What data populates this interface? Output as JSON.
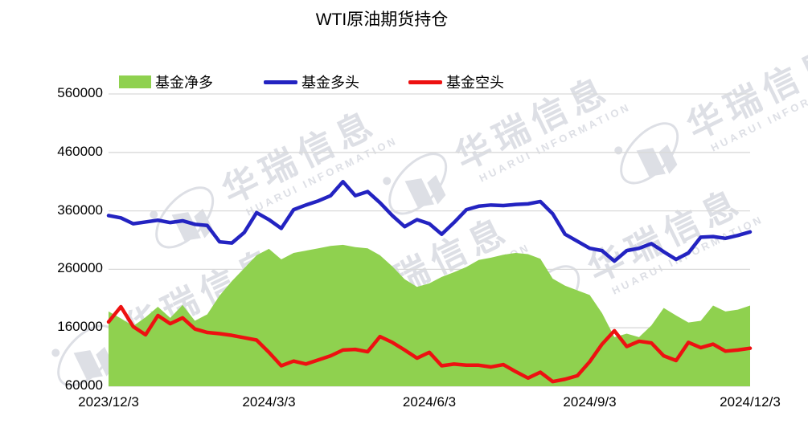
{
  "title": "WTI原油期货持仓",
  "watermark": {
    "cn": "华瑞信息",
    "en": "HUARUI INFORMATION"
  },
  "legend": [
    {
      "label": "基金净多",
      "type": "area",
      "color": "#8FD14F"
    },
    {
      "label": "基金多头",
      "type": "line",
      "color": "#2323C1"
    },
    {
      "label": "基金空头",
      "type": "line",
      "color": "#ED1111"
    }
  ],
  "colors": {
    "grid": "#D9D9D9",
    "background": "#FFFFFF",
    "watermark": "#C9CCD6"
  },
  "chart_data": {
    "type": "area",
    "title": "WTI原油期货持仓",
    "x_ticks": [
      "2023/12/3",
      "2024/3/3",
      "2024/6/3",
      "2024/9/3",
      "2024/12/3"
    ],
    "x_tick_indices": [
      0,
      13,
      26,
      39,
      52
    ],
    "x_unit": "weekly",
    "y_ticks": [
      560000,
      460000,
      360000,
      260000,
      160000,
      60000
    ],
    "ylim": [
      60000,
      560000
    ],
    "grid": "horizontal",
    "legend_position": "top-left",
    "series": [
      {
        "name": "基金净多",
        "type": "area",
        "color": "#8FD14F",
        "values": [
          188000,
          176000,
          163000,
          178000,
          196000,
          177000,
          199000,
          172000,
          183000,
          215000,
          240000,
          262000,
          284000,
          295000,
          277000,
          288000,
          292000,
          296000,
          300000,
          302000,
          298000,
          296000,
          284000,
          265000,
          243000,
          230000,
          236000,
          247000,
          255000,
          264000,
          276000,
          280000,
          285000,
          288000,
          286000,
          278000,
          244000,
          232000,
          224000,
          216000,
          185000,
          144000,
          150000,
          144000,
          164000,
          194000,
          181000,
          169000,
          172000,
          198000,
          188000,
          191000,
          198000
        ]
      },
      {
        "name": "基金多头",
        "type": "line",
        "color": "#2323C1",
        "values": [
          352000,
          348000,
          338000,
          341000,
          344000,
          340000,
          343000,
          337000,
          335000,
          307000,
          305000,
          323000,
          357000,
          345000,
          330000,
          362000,
          370000,
          377000,
          386000,
          410000,
          386000,
          393000,
          374000,
          352000,
          333000,
          345000,
          338000,
          320000,
          340000,
          362000,
          368000,
          370000,
          369000,
          371000,
          372000,
          376000,
          355000,
          320000,
          308000,
          296000,
          292000,
          274000,
          292000,
          296000,
          304000,
          290000,
          277000,
          288000,
          315000,
          316000,
          313000,
          318000,
          324000
        ]
      },
      {
        "name": "基金空头",
        "type": "line",
        "color": "#ED1111",
        "values": [
          170000,
          196000,
          162000,
          148000,
          181000,
          167000,
          177000,
          158000,
          152000,
          150000,
          147000,
          143000,
          139000,
          118000,
          95000,
          103000,
          98000,
          105000,
          112000,
          122000,
          123000,
          119000,
          145000,
          135000,
          122000,
          108000,
          118000,
          95000,
          98000,
          96000,
          96000,
          93000,
          97000,
          85000,
          74000,
          84000,
          68000,
          72000,
          78000,
          102000,
          132000,
          155000,
          128000,
          137000,
          134000,
          112000,
          104000,
          135000,
          126000,
          132000,
          120000,
          122000,
          125000
        ]
      }
    ]
  }
}
